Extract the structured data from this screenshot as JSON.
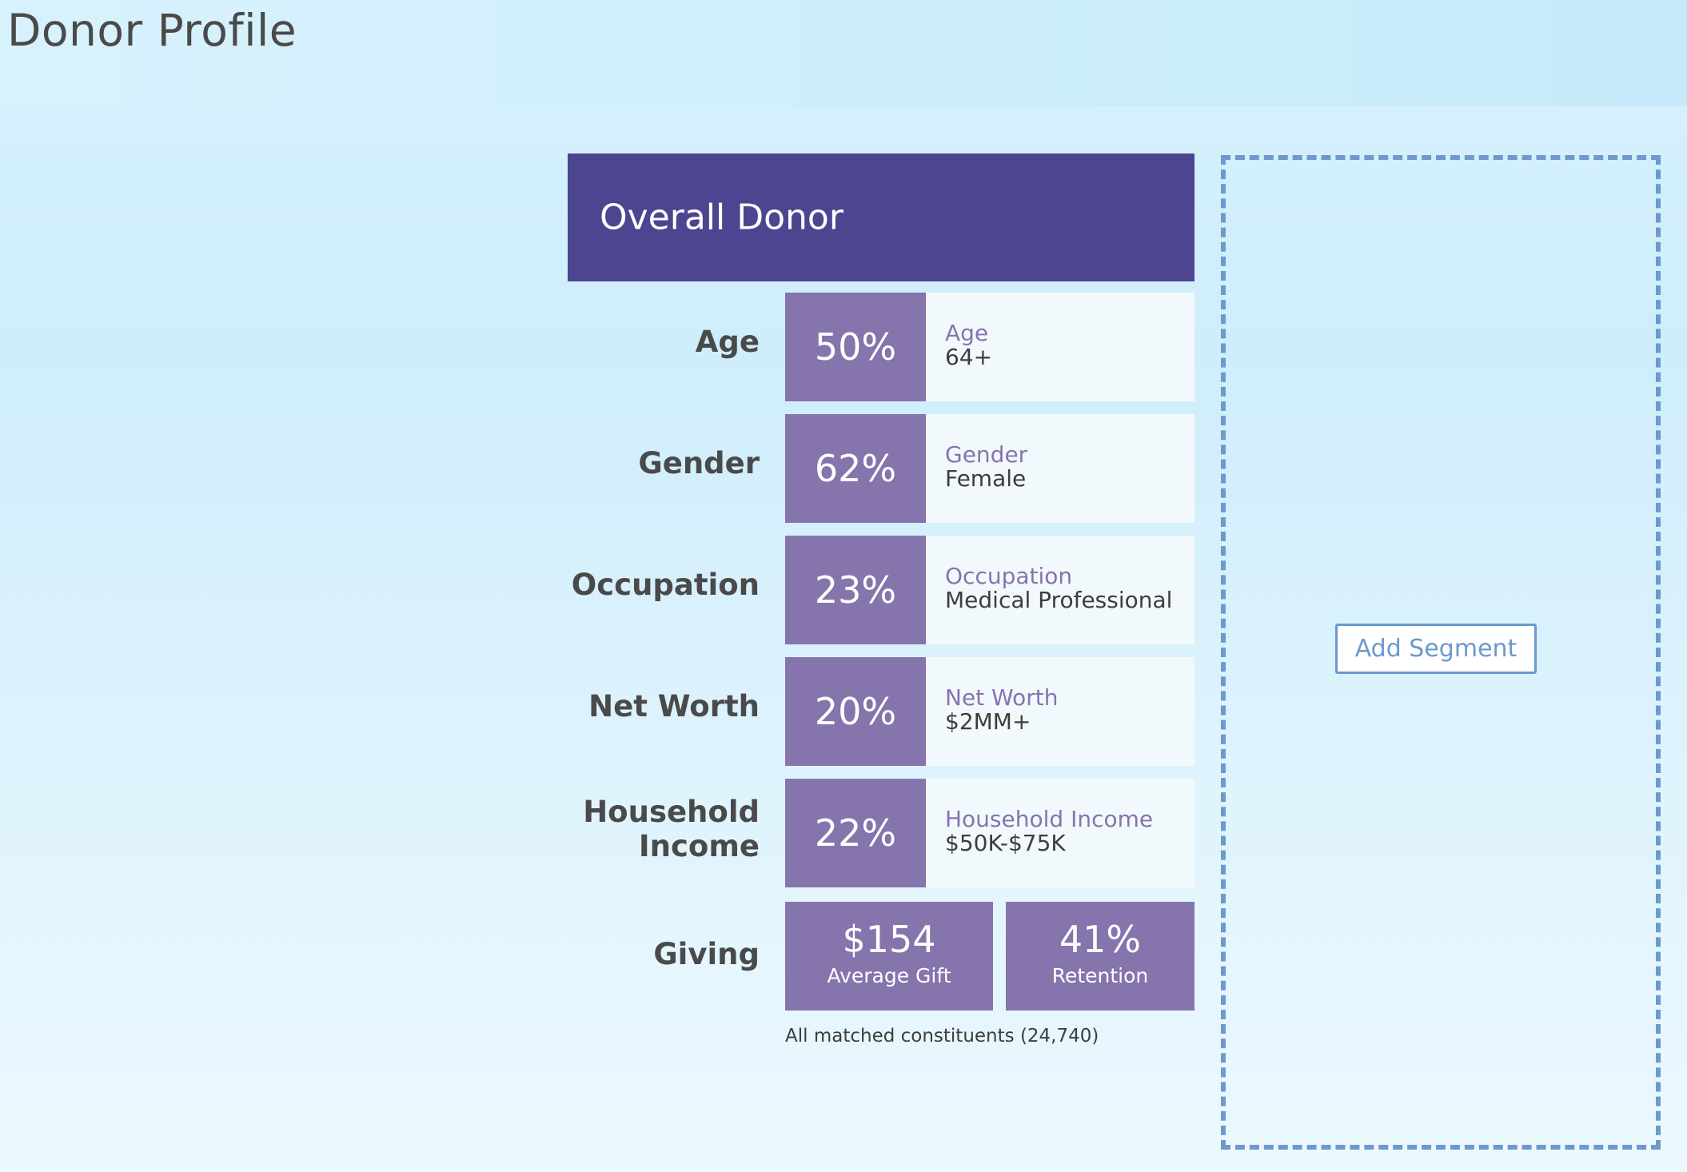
{
  "page": {
    "title": "Donor Profile"
  },
  "card": {
    "title": "Overall Donor",
    "rows": [
      {
        "label": "Age",
        "percent": "50%",
        "category": "Age",
        "value": "64+"
      },
      {
        "label": "Gender",
        "percent": "62%",
        "category": "Gender",
        "value": "Female"
      },
      {
        "label": "Occupation",
        "percent": "23%",
        "category": "Occupation",
        "value": "Medical Professional"
      },
      {
        "label": "Net Worth",
        "percent": "20%",
        "category": "Net Worth",
        "value": "$2MM+"
      },
      {
        "label_line1": "Household",
        "label_line2": "Income",
        "percent": "22%",
        "category": "Household Income",
        "value": "$50K-$75K"
      }
    ],
    "giving": {
      "label": "Giving",
      "average_gift_value": "$154",
      "average_gift_label": "Average Gift",
      "retention_value": "41%",
      "retention_label": "Retention"
    },
    "footnote": "All matched constituents (24,740)"
  },
  "segment": {
    "add_label": "Add Segment"
  },
  "colors": {
    "header_purple": "#4d4590",
    "box_purple": "#8674ad",
    "dashed_blue": "#6b9acb"
  }
}
